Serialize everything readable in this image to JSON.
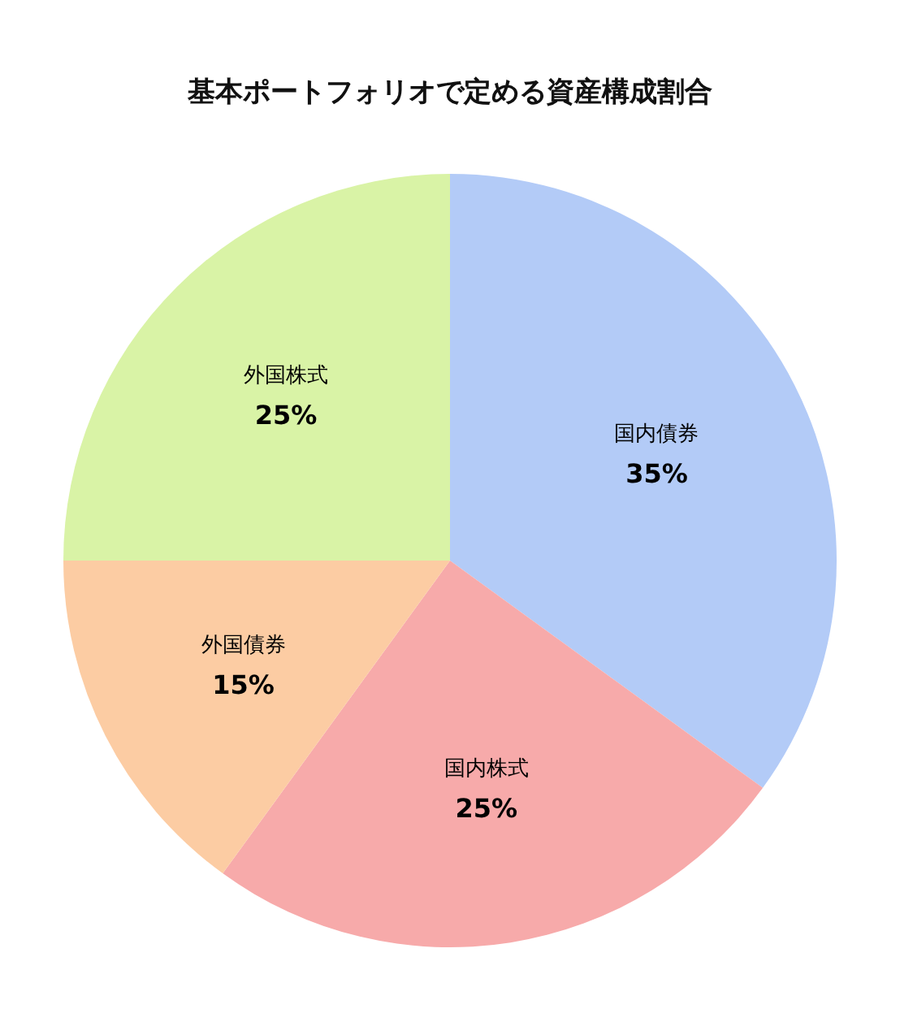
{
  "chart_data": {
    "type": "pie",
    "title": "基本ポートフォリオで定める資産構成割合",
    "categories": [
      "国内債券",
      "国内株式",
      "外国債券",
      "外国株式"
    ],
    "values": [
      35,
      25,
      15,
      25
    ],
    "value_labels": [
      "35%",
      "25%",
      "15%",
      "25%"
    ],
    "colors": [
      "#b3cbf7",
      "#f7aaaa",
      "#fcccA3",
      "#d9f3a6"
    ],
    "legend": false
  }
}
